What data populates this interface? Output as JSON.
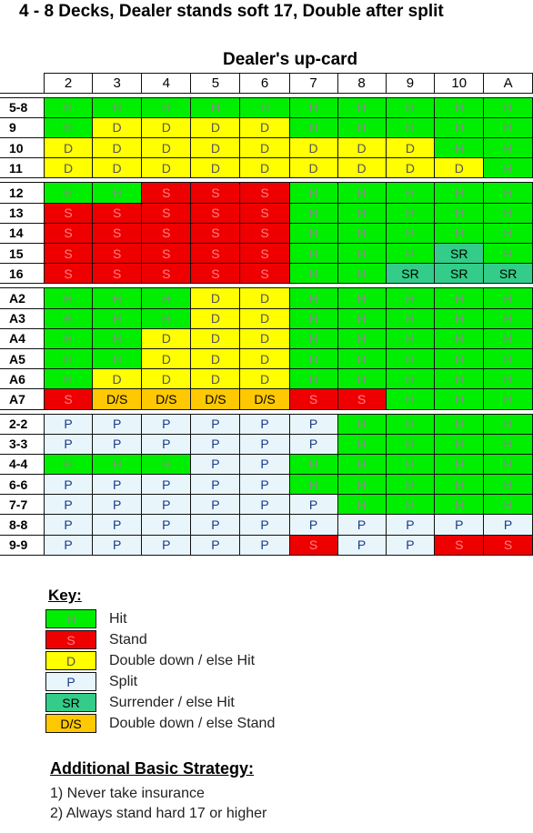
{
  "title": "4 - 8 Decks,  Dealer stands soft 17, Double after split",
  "subtitle": "Dealer's up-card",
  "columns": [
    "2",
    "3",
    "4",
    "5",
    "6",
    "7",
    "8",
    "9",
    "10",
    "A"
  ],
  "groups": [
    {
      "rows": [
        {
          "label": "5-8",
          "cells": [
            "H",
            "H",
            "H",
            "H",
            "H",
            "H",
            "H",
            "H",
            "H",
            "H"
          ]
        },
        {
          "label": "9",
          "cells": [
            "H",
            "D",
            "D",
            "D",
            "D",
            "H",
            "H",
            "H",
            "H",
            "H"
          ]
        },
        {
          "label": "10",
          "cells": [
            "D",
            "D",
            "D",
            "D",
            "D",
            "D",
            "D",
            "D",
            "H",
            "H"
          ]
        },
        {
          "label": "11",
          "cells": [
            "D",
            "D",
            "D",
            "D",
            "D",
            "D",
            "D",
            "D",
            "D",
            "H"
          ]
        }
      ]
    },
    {
      "rows": [
        {
          "label": "12",
          "cells": [
            "H",
            "H",
            "S",
            "S",
            "S",
            "H",
            "H",
            "H",
            "H",
            "H"
          ]
        },
        {
          "label": "13",
          "cells": [
            "S",
            "S",
            "S",
            "S",
            "S",
            "H",
            "H",
            "H",
            "H",
            "H"
          ]
        },
        {
          "label": "14",
          "cells": [
            "S",
            "S",
            "S",
            "S",
            "S",
            "H",
            "H",
            "H",
            "H",
            "H"
          ]
        },
        {
          "label": "15",
          "cells": [
            "S",
            "S",
            "S",
            "S",
            "S",
            "H",
            "H",
            "H",
            "SR",
            "H"
          ]
        },
        {
          "label": "16",
          "cells": [
            "S",
            "S",
            "S",
            "S",
            "S",
            "H",
            "H",
            "SR",
            "SR",
            "SR"
          ]
        }
      ]
    },
    {
      "rows": [
        {
          "label": "A2",
          "cells": [
            "H",
            "H",
            "H",
            "D",
            "D",
            "H",
            "H",
            "H",
            "H",
            "H"
          ]
        },
        {
          "label": "A3",
          "cells": [
            "H",
            "H",
            "H",
            "D",
            "D",
            "H",
            "H",
            "H",
            "H",
            "H"
          ]
        },
        {
          "label": "A4",
          "cells": [
            "H",
            "H",
            "D",
            "D",
            "D",
            "H",
            "H",
            "H",
            "H",
            "H"
          ]
        },
        {
          "label": "A5",
          "cells": [
            "H",
            "H",
            "D",
            "D",
            "D",
            "H",
            "H",
            "H",
            "H",
            "H"
          ]
        },
        {
          "label": "A6",
          "cells": [
            "H",
            "D",
            "D",
            "D",
            "D",
            "H",
            "H",
            "H",
            "H",
            "H"
          ]
        },
        {
          "label": "A7",
          "cells": [
            "S",
            "D/S",
            "D/S",
            "D/S",
            "D/S",
            "S",
            "S",
            "H",
            "H",
            "H"
          ]
        }
      ]
    },
    {
      "rows": [
        {
          "label": "2-2",
          "cells": [
            "P",
            "P",
            "P",
            "P",
            "P",
            "P",
            "H",
            "H",
            "H",
            "H"
          ]
        },
        {
          "label": "3-3",
          "cells": [
            "P",
            "P",
            "P",
            "P",
            "P",
            "P",
            "H",
            "H",
            "H",
            "H"
          ]
        },
        {
          "label": "4-4",
          "cells": [
            "H",
            "H",
            "H",
            "P",
            "P",
            "H",
            "H",
            "H",
            "H",
            "H"
          ]
        },
        {
          "label": "6-6",
          "cells": [
            "P",
            "P",
            "P",
            "P",
            "P",
            "H",
            "H",
            "H",
            "H",
            "H"
          ]
        },
        {
          "label": "7-7",
          "cells": [
            "P",
            "P",
            "P",
            "P",
            "P",
            "P",
            "H",
            "H",
            "H",
            "H"
          ]
        },
        {
          "label": "8-8",
          "cells": [
            "P",
            "P",
            "P",
            "P",
            "P",
            "P",
            "P",
            "P",
            "P",
            "P"
          ]
        },
        {
          "label": "9-9",
          "cells": [
            "P",
            "P",
            "P",
            "P",
            "P",
            "S",
            "P",
            "P",
            "S",
            "S"
          ]
        }
      ]
    }
  ],
  "key_title": "Key:",
  "key": [
    {
      "code": "H",
      "label": "Hit"
    },
    {
      "code": "S",
      "label": "Stand"
    },
    {
      "code": "D",
      "label": "Double down / else Hit"
    },
    {
      "code": "P",
      "label": "Split"
    },
    {
      "code": "SR",
      "label": "Surrender / else Hit"
    },
    {
      "code": "D/S",
      "label": "Double down / else Stand"
    }
  ],
  "additional_title": "Additional Basic Strategy:",
  "additional": [
    "1) Never take insurance",
    "2) Always stand hard 17 or higher"
  ]
}
